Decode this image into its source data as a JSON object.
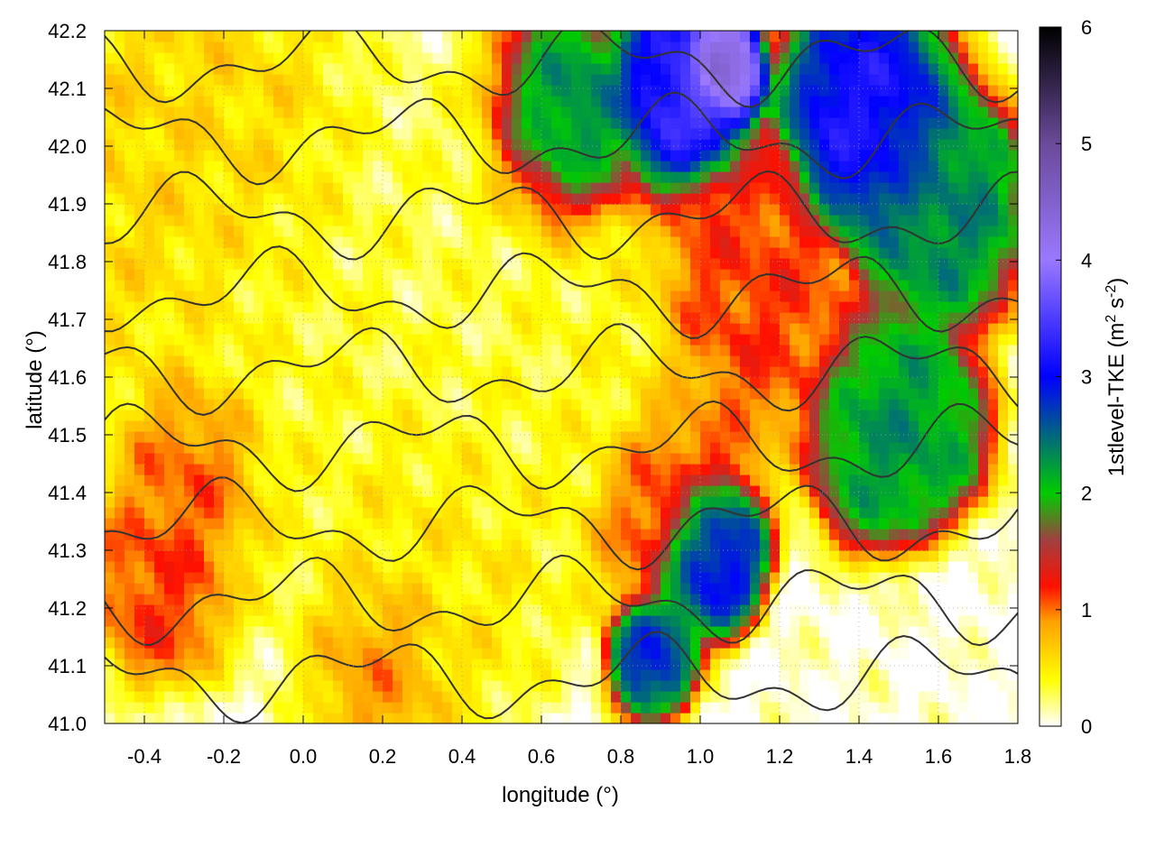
{
  "chart_data": {
    "type": "heatmap",
    "title": "",
    "xlabel": "longitude (°)",
    "ylabel": "latitude (°)",
    "colorbar_label_parts": [
      "1stlevel-TKE (m",
      "2",
      " s",
      "-2",
      ")"
    ],
    "xlim": [
      -0.5,
      1.8
    ],
    "ylim": [
      41.0,
      42.2
    ],
    "colorbar_range": [
      0,
      6
    ],
    "x_ticks": [
      -0.4,
      -0.2,
      0.0,
      0.2,
      0.4,
      0.6,
      0.8,
      1.0,
      1.2,
      1.4,
      1.6,
      1.8
    ],
    "x_tick_labels": [
      "-0.4",
      "-0.2",
      "0.0",
      "0.2",
      "0.4",
      "0.6",
      "0.8",
      "1.0",
      "1.2",
      "1.4",
      "1.6",
      "1.8"
    ],
    "y_ticks": [
      41.0,
      41.1,
      41.2,
      41.3,
      41.4,
      41.5,
      41.6,
      41.7,
      41.8,
      41.9,
      42.0,
      42.1,
      42.2
    ],
    "y_tick_labels": [
      "41.0",
      "41.1",
      "41.2",
      "41.3",
      "41.4",
      "41.5",
      "41.6",
      "41.7",
      "41.8",
      "41.9",
      "42.0",
      "42.1",
      "42.2"
    ],
    "colorbar_ticks": [
      0,
      1,
      2,
      3,
      4,
      5,
      6
    ],
    "colorbar_tick_labels": [
      "0",
      "1",
      "2",
      "3",
      "4",
      "5",
      "6"
    ],
    "colormap": [
      {
        "v": 0.0,
        "color": "#ffffff"
      },
      {
        "v": 0.4,
        "color": "#ffff00"
      },
      {
        "v": 0.9,
        "color": "#ffa000"
      },
      {
        "v": 1.2,
        "color": "#ff1000"
      },
      {
        "v": 1.6,
        "color": "#a04040"
      },
      {
        "v": 2.0,
        "color": "#00cc00"
      },
      {
        "v": 3.0,
        "color": "#0000ff"
      },
      {
        "v": 4.0,
        "color": "#9a78ff"
      },
      {
        "v": 5.0,
        "color": "#6a4a9a"
      },
      {
        "v": 6.0,
        "color": "#000000"
      }
    ],
    "grid": true,
    "contours": true,
    "contour_color": "#333333",
    "tke_features": [
      {
        "x": -0.05,
        "y": 41.6,
        "v": 0.35,
        "s": 0.25
      },
      {
        "x": 0.45,
        "y": 41.75,
        "v": 0.3,
        "s": 0.25
      },
      {
        "x": 0.3,
        "y": 41.3,
        "v": 0.5,
        "s": 0.2
      },
      {
        "x": 0.7,
        "y": 41.6,
        "v": 0.4,
        "s": 0.2
      },
      {
        "x": -0.3,
        "y": 41.95,
        "v": 0.6,
        "s": 0.25
      },
      {
        "x": -0.25,
        "y": 41.45,
        "v": 1.25,
        "s": 0.12
      },
      {
        "x": -0.35,
        "y": 41.25,
        "v": 1.15,
        "s": 0.1
      },
      {
        "x": 0.2,
        "y": 41.12,
        "v": 1.0,
        "s": 0.1
      },
      {
        "x": 1.1,
        "y": 41.75,
        "v": 1.15,
        "s": 0.15
      },
      {
        "x": 0.9,
        "y": 41.4,
        "v": 1.2,
        "s": 0.12
      },
      {
        "x": 0.65,
        "y": 42.02,
        "v": 2.6,
        "s": 0.12
      },
      {
        "x": 0.95,
        "y": 42.08,
        "v": 3.4,
        "s": 0.1
      },
      {
        "x": 1.05,
        "y": 42.13,
        "v": 4.6,
        "s": 0.06
      },
      {
        "x": 1.42,
        "y": 42.05,
        "v": 3.2,
        "s": 0.12
      },
      {
        "x": 1.6,
        "y": 41.9,
        "v": 2.4,
        "s": 0.12
      },
      {
        "x": 1.5,
        "y": 41.5,
        "v": 2.3,
        "s": 0.12
      },
      {
        "x": 1.02,
        "y": 41.3,
        "v": 3.2,
        "s": 0.08
      },
      {
        "x": 0.88,
        "y": 41.12,
        "v": 2.8,
        "s": 0.06
      },
      {
        "x": 1.65,
        "y": 41.1,
        "v": 0.02,
        "s": 0.14
      },
      {
        "x": 1.35,
        "y": 41.08,
        "v": 0.05,
        "s": 0.1
      }
    ]
  }
}
